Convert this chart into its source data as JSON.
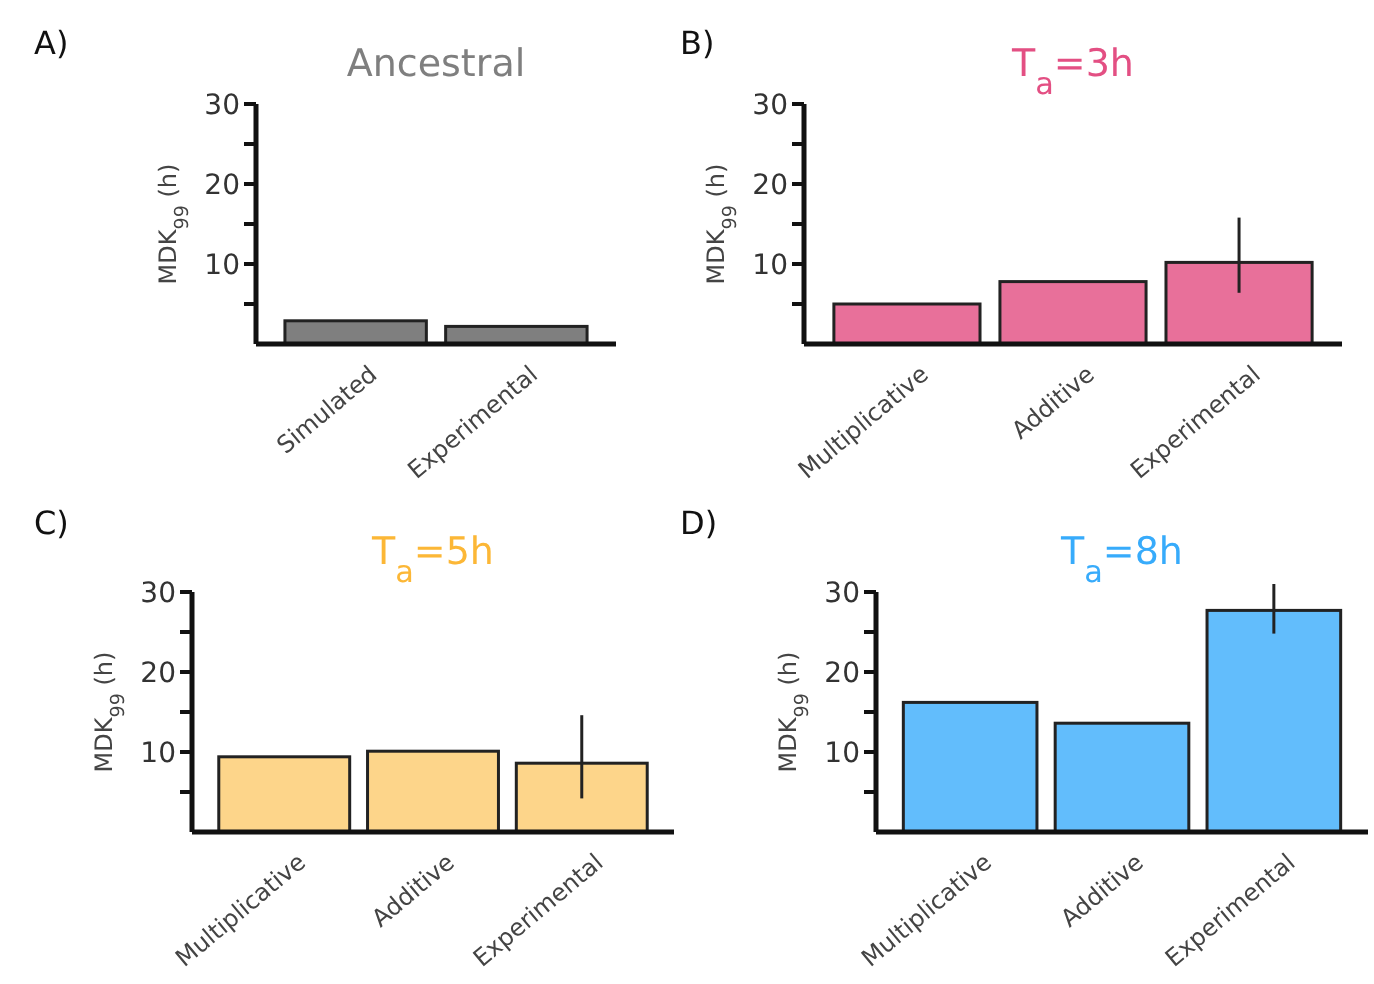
{
  "chart_data": [
    {
      "type": "bar",
      "title": "Ancestral",
      "ylabel": "MDK$_{99}$ (h)",
      "annotations": [
        "A)"
      ],
      "categories": [
        "Simulated",
        "Experimental"
      ],
      "series": [
        {
          "color": "#7f7f7f",
          "values": [
            2.9,
            2.2
          ]
        }
      ],
      "ylim": [
        0,
        30
      ],
      "yticks": [
        {
          "value": 5,
          "label": null
        },
        10,
        {
          "value": 15,
          "label": null
        },
        20,
        {
          "value": 25,
          "label": null
        },
        30
      ]
    },
    {
      "type": "bar",
      "title": "T$_{a}$=3h",
      "ylabel": "MDK$_{99}$ (h)",
      "annotations": [
        "B)"
      ],
      "categories": [
        "Multiplicative",
        "Additive",
        "Experimental"
      ],
      "series": [
        {
          "color": "#e8709a",
          "values": [
            5.0,
            7.8,
            10.2
          ],
          "errors": [
            null,
            null,
            [
              6.4,
              15.8
            ]
          ]
        }
      ],
      "ylim": [
        0,
        30
      ],
      "yticks": [
        {
          "value": 5,
          "label": null
        },
        10,
        {
          "value": 15,
          "label": null
        },
        20,
        {
          "value": 25,
          "label": null
        },
        30
      ]
    },
    {
      "type": "bar",
      "title": "T$_{a}$=5h",
      "ylabel": "MDK$_{99}$ (h)",
      "annotations": [
        "C)"
      ],
      "categories": [
        "Multiplicative",
        "Additive",
        "Experimental"
      ],
      "series": [
        {
          "color": "#fdd58a",
          "values": [
            9.4,
            10.1,
            8.6
          ],
          "errors": [
            null,
            null,
            [
              4.2,
              14.6
            ]
          ]
        }
      ],
      "ylim": [
        0,
        30
      ],
      "yticks": [
        {
          "value": 5,
          "label": null
        },
        10,
        {
          "value": 15,
          "label": null
        },
        20,
        {
          "value": 25,
          "label": null
        },
        30
      ]
    },
    {
      "type": "bar",
      "title": "T$_{a}$=8h",
      "ylabel": "MDK$_{99}$ (h)",
      "annotations": [
        "D)"
      ],
      "categories": [
        "Multiplicative",
        "Additive",
        "Experimental"
      ],
      "series": [
        {
          "color": "#62bdfc",
          "values": [
            16.2,
            13.6,
            27.7
          ],
          "errors": [
            null,
            null,
            [
              24.8,
              31.0
            ]
          ]
        }
      ],
      "ylim": [
        0,
        30
      ],
      "yticks": [
        {
          "value": 5,
          "label": null
        },
        10,
        {
          "value": 15,
          "label": null
        },
        20,
        {
          "value": 25,
          "label": null
        },
        30
      ]
    }
  ]
}
